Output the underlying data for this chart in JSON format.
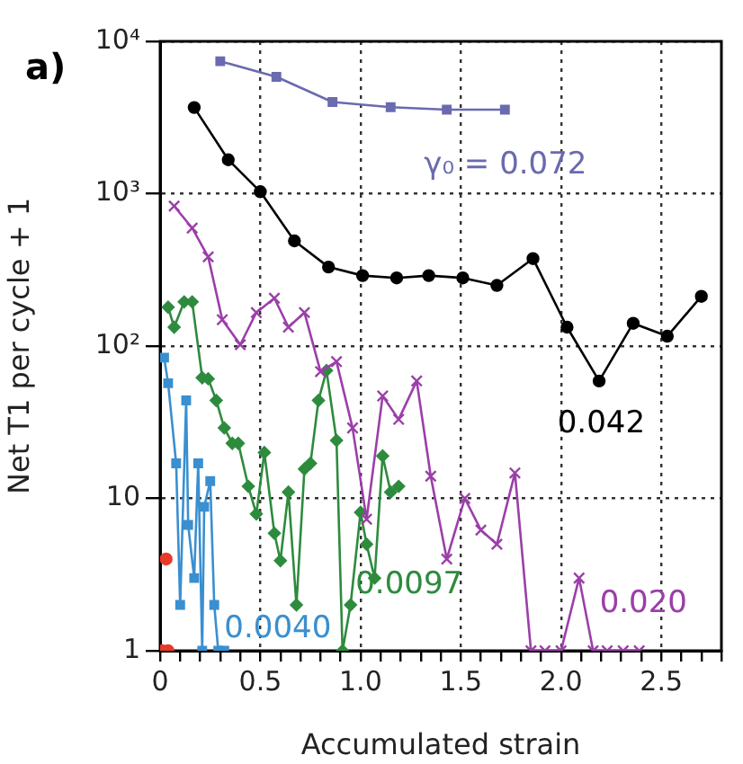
{
  "chart_data": {
    "type": "line",
    "title": "a)",
    "xlabel": "Accumulated strain",
    "ylabel": "Net T1 per cycle + 1",
    "log": "y",
    "grid": true,
    "legend": false,
    "xlim": [
      0,
      2.8
    ],
    "ylim": [
      1,
      10000
    ],
    "xticks": [
      0,
      {
        "value": 0.1,
        "label": null
      },
      {
        "value": 0.2,
        "label": null
      },
      {
        "value": 0.3,
        "label": null
      },
      {
        "value": 0.4,
        "label": null
      },
      0.5,
      {
        "value": 0.6,
        "label": null
      },
      {
        "value": 0.7,
        "label": null
      },
      {
        "value": 0.8,
        "label": null
      },
      {
        "value": 0.9,
        "label": null
      },
      {
        "value": 1,
        "label": "1.0"
      },
      {
        "value": 1.1,
        "label": null
      },
      {
        "value": 1.2,
        "label": null
      },
      {
        "value": 1.3,
        "label": null
      },
      {
        "value": 1.4,
        "label": null
      },
      1.5,
      {
        "value": 1.6,
        "label": null
      },
      {
        "value": 1.7,
        "label": null
      },
      {
        "value": 1.8,
        "label": null
      },
      {
        "value": 1.9,
        "label": null
      },
      {
        "value": 2,
        "label": "2.0"
      },
      {
        "value": 2.1,
        "label": null
      },
      {
        "value": 2.2,
        "label": null
      },
      {
        "value": 2.3,
        "label": null
      },
      {
        "value": 2.4,
        "label": null
      },
      2.5,
      {
        "value": 2.6,
        "label": null
      },
      {
        "value": 2.7,
        "label": null
      },
      {
        "value": 2.8,
        "label": null
      }
    ],
    "yticks": [
      1,
      10,
      {
        "value": 100,
        "label": "10²"
      },
      {
        "value": 1000,
        "label": "10³"
      },
      {
        "value": 10000,
        "label": "10⁴"
      }
    ],
    "series": [
      {
        "color": "#6a6ab0",
        "marker": "square",
        "x": [
          0.3,
          0.58,
          0.86,
          1.15,
          1.43,
          1.72
        ],
        "values": [
          7400,
          5850,
          4000,
          3700,
          3560,
          3560
        ]
      },
      {
        "color": "#000000",
        "marker": "circle",
        "x": [
          0.17,
          0.34,
          0.5,
          0.67,
          0.84,
          1.01,
          1.18,
          1.34,
          1.51,
          1.68,
          1.86,
          2.03,
          2.19,
          2.36,
          2.53,
          2.7
        ],
        "values": [
          3680,
          1670,
          1030,
          490,
          330,
          290,
          280,
          290,
          280,
          250,
          375,
          133,
          59,
          141,
          116,
          212
        ]
      },
      {
        "color": "#9b3fa8",
        "marker": "cross",
        "x": [
          0.07,
          0.16,
          0.24,
          0.31,
          0.4,
          0.48,
          0.57,
          0.64,
          0.72,
          0.8,
          0.88,
          0.96,
          1.03,
          1.11,
          1.19,
          1.28,
          1.35,
          1.43,
          1.52,
          1.6,
          1.68,
          1.77,
          1.85,
          1.92,
          2,
          2.09,
          2.16,
          2.23,
          2.31,
          2.39
        ],
        "values": [
          830,
          595,
          385,
          149,
          102,
          166,
          206,
          133,
          166,
          68,
          79,
          29,
          7.3,
          47,
          33,
          59,
          14,
          4,
          10,
          6.2,
          5,
          14.7,
          1,
          1,
          1,
          3,
          1,
          1,
          1,
          1
        ]
      },
      {
        "color": "#2e8b3e",
        "marker": "diamond",
        "x": [
          0.04,
          0.07,
          0.12,
          0.16,
          0.21,
          0.24,
          0.28,
          0.32,
          0.36,
          0.39,
          0.44,
          0.48,
          0.52,
          0.57,
          0.6,
          0.64,
          0.68,
          0.72,
          0.75,
          0.79,
          0.83,
          0.88,
          0.91,
          0.95,
          1,
          1.03,
          1.07,
          1.11,
          1.15,
          1.19
        ],
        "values": [
          180,
          133,
          195,
          195,
          62,
          61,
          44,
          29,
          23,
          23,
          12,
          7.9,
          20,
          5.9,
          3.9,
          11,
          2,
          15.6,
          17,
          44,
          69,
          24,
          1,
          2,
          8.1,
          5,
          3,
          19,
          11,
          12
        ]
      },
      {
        "color": "#3a8fd0",
        "marker": "square",
        "x": [
          0.02,
          0.04,
          0.08,
          0.1,
          0.13,
          0.14,
          0.17,
          0.19,
          0.21,
          0.22,
          0.25,
          0.27,
          0.29,
          0.32
        ],
        "values": [
          84,
          57,
          17,
          2,
          44,
          6.7,
          3,
          17,
          1,
          8.8,
          13,
          2,
          1,
          1
        ]
      },
      {
        "type": "scatter",
        "color": "#e83a2a",
        "marker": "circle",
        "x": [
          0.01,
          0.03,
          0.04
        ],
        "values": [
          1,
          4,
          1
        ]
      }
    ],
    "annotations": [
      "γ₀ = 0.072",
      "0.042",
      "0.020",
      "0.0097",
      "0.0040"
    ]
  }
}
